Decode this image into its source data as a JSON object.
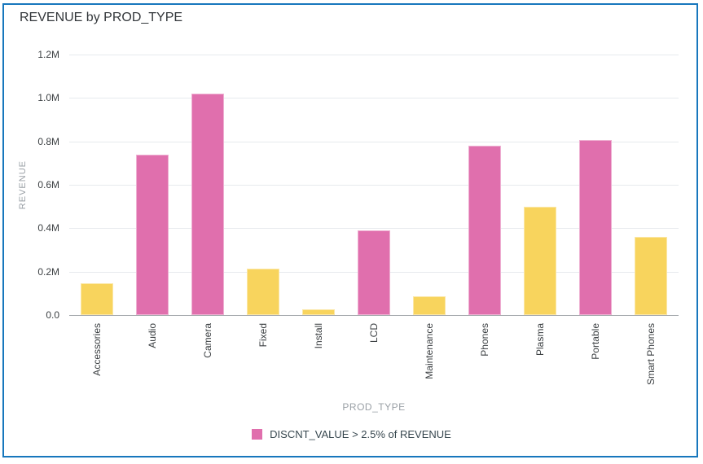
{
  "panel": {
    "border_color": "#1777bd"
  },
  "chart_data": {
    "type": "bar",
    "title": "REVENUE by PROD_TYPE",
    "xlabel": "PROD_TYPE",
    "ylabel": "REVENUE",
    "categories": [
      "Accessories",
      "Audio",
      "Camera",
      "Fixed",
      "Install",
      "LCD",
      "Maintenance",
      "Phones",
      "Plasma",
      "Portable",
      "Smart Phones"
    ],
    "values": [
      145000,
      740000,
      1020000,
      215000,
      28000,
      390000,
      87000,
      780000,
      500000,
      805000,
      360000
    ],
    "highlighted": [
      false,
      true,
      true,
      false,
      false,
      true,
      false,
      true,
      false,
      true,
      false
    ],
    "colors": {
      "highlight": "#e06fad",
      "default": "#f8d45d"
    },
    "ylim": [
      0,
      1200000
    ],
    "yticks": [
      {
        "value": 0,
        "label": "0.0"
      },
      {
        "value": 200000,
        "label": "0.2M"
      },
      {
        "value": 400000,
        "label": "0.4M"
      },
      {
        "value": 600000,
        "label": "0.6M"
      },
      {
        "value": 800000,
        "label": "0.8M"
      },
      {
        "value": 1000000,
        "label": "1.0M"
      },
      {
        "value": 1200000,
        "label": "1.2M"
      }
    ],
    "grid": true,
    "legend_position": "bottom",
    "legend": [
      {
        "label": "DISCNT_VALUE > 2.5% of REVENUE",
        "color": "#e06fad"
      }
    ]
  }
}
